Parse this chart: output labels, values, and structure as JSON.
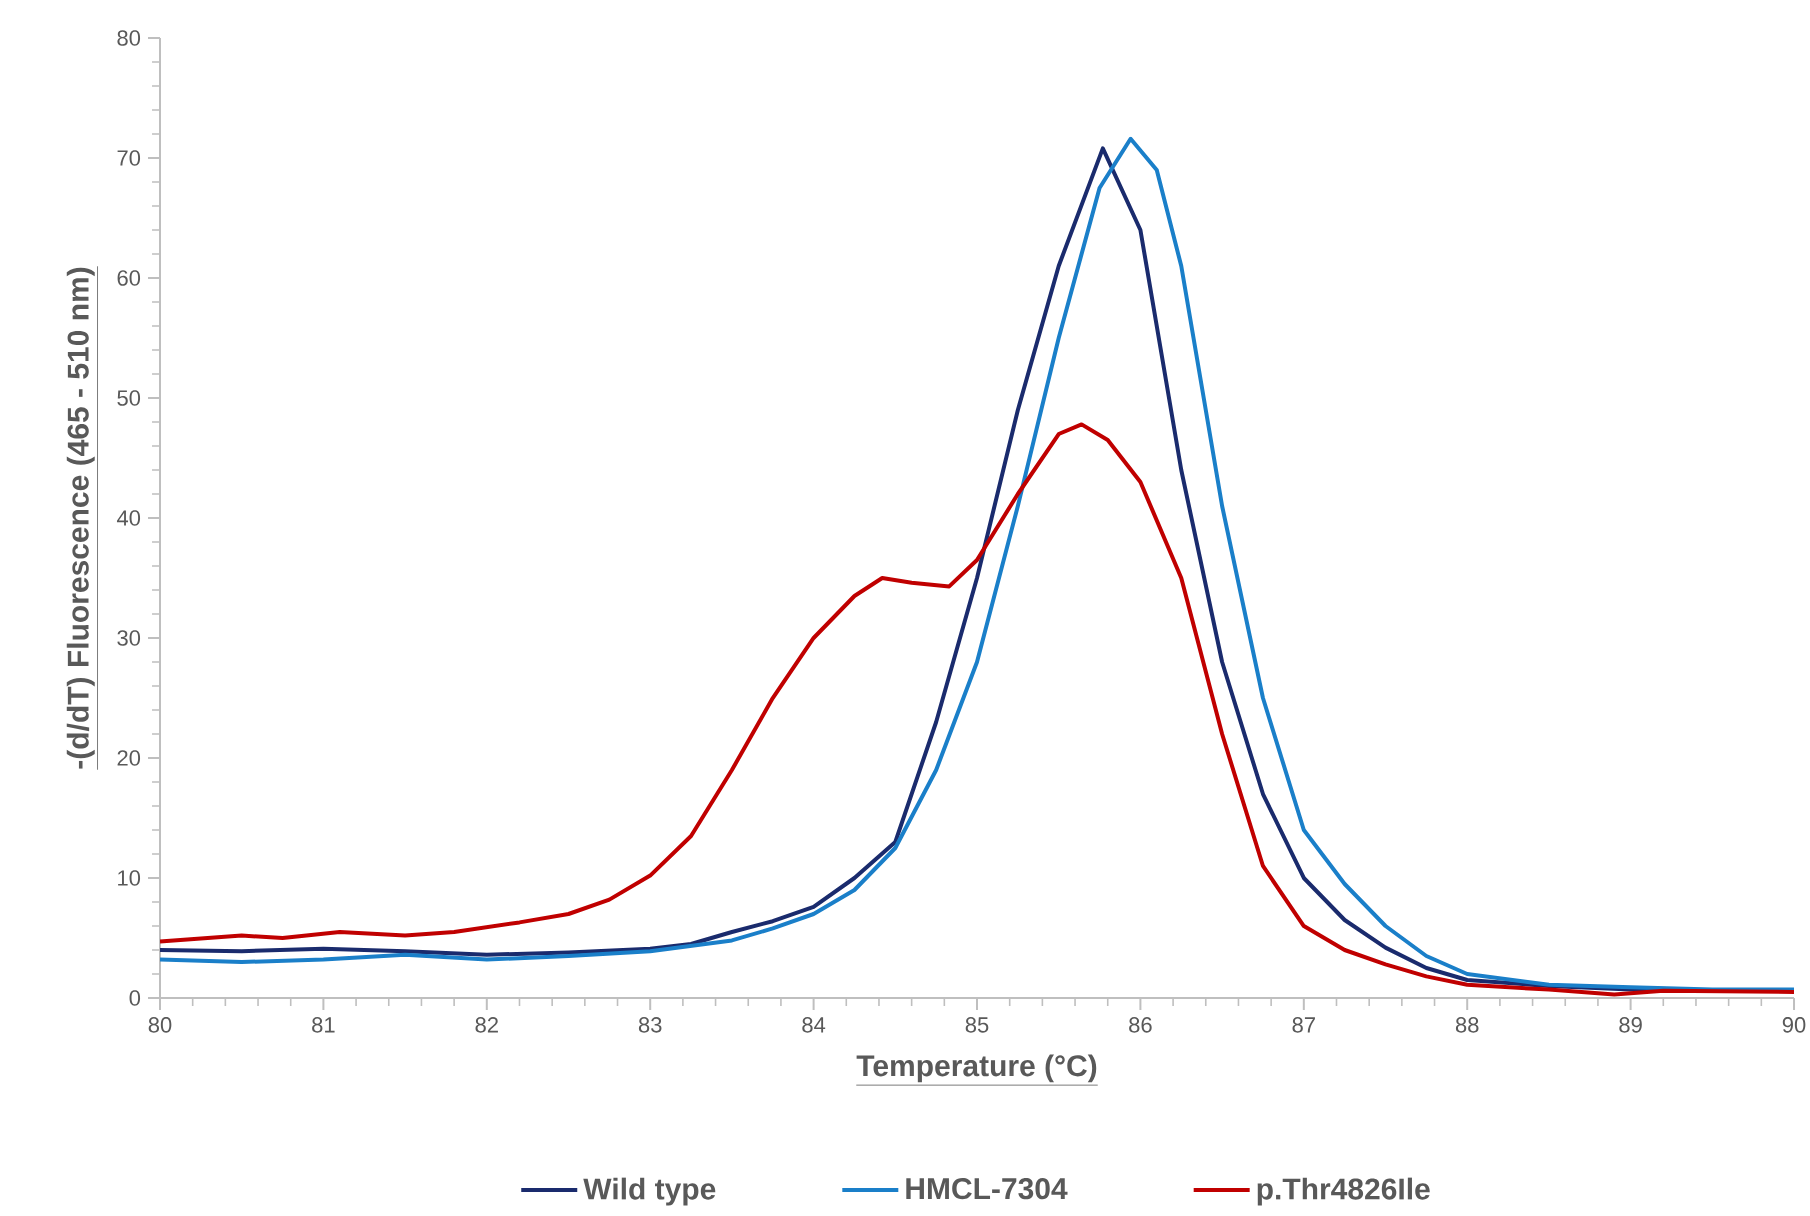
{
  "chart_data": {
    "type": "line",
    "xlabel": "Temperature (°C)",
    "ylabel": "-(d/dT) Fluorescence (465 - 510 nm)",
    "xlim": [
      80,
      90
    ],
    "ylim": [
      0,
      80
    ],
    "xticks": [
      80,
      81,
      82,
      83,
      84,
      85,
      86,
      87,
      88,
      89,
      90
    ],
    "yticks": [
      0,
      10,
      20,
      30,
      40,
      50,
      60,
      70,
      80
    ],
    "legend": "bottom",
    "line_style": "solid",
    "marker": "none",
    "series": [
      {
        "name": "Wild type",
        "color": "#1a2b6d",
        "x": [
          80,
          80.5,
          81,
          81.5,
          82,
          82.5,
          83,
          83.25,
          83.5,
          83.75,
          84,
          84.25,
          84.5,
          84.75,
          85,
          85.25,
          85.5,
          85.77,
          86,
          86.25,
          86.5,
          86.75,
          87,
          87.25,
          87.5,
          87.75,
          88,
          88.5,
          89,
          89.5,
          90
        ],
        "values": [
          4.0,
          3.9,
          4.1,
          3.9,
          3.6,
          3.8,
          4.1,
          4.5,
          5.5,
          6.4,
          7.6,
          10,
          13,
          23,
          35,
          49,
          61,
          70.8,
          64,
          44,
          28,
          17,
          10,
          6.5,
          4.2,
          2.5,
          1.5,
          1.0,
          0.7,
          0.6,
          0.6
        ]
      },
      {
        "name": "HMCL-7304",
        "color": "#1a7fc9",
        "x": [
          80,
          80.5,
          81,
          81.5,
          82,
          82.5,
          83,
          83.5,
          83.75,
          84,
          84.25,
          84.5,
          84.75,
          85,
          85.25,
          85.5,
          85.75,
          85.94,
          86.1,
          86.25,
          86.5,
          86.75,
          87,
          87.25,
          87.5,
          87.75,
          88,
          88.5,
          89,
          89.5,
          90
        ],
        "values": [
          3.2,
          3.0,
          3.2,
          3.6,
          3.2,
          3.5,
          3.9,
          4.8,
          5.8,
          7.0,
          9,
          12.5,
          19,
          28,
          41,
          55,
          67.5,
          71.6,
          69,
          61,
          41,
          25,
          14,
          9.5,
          6,
          3.5,
          2.0,
          1.1,
          0.9,
          0.7,
          0.7
        ]
      },
      {
        "name": "p.Thr4826Ile",
        "color": "#c00000",
        "x": [
          80,
          80.5,
          80.75,
          81.1,
          81.5,
          81.8,
          82.2,
          82.5,
          82.75,
          83,
          83.25,
          83.5,
          83.75,
          84,
          84.25,
          84.42,
          84.6,
          84.83,
          85,
          85.25,
          85.5,
          85.64,
          85.8,
          86,
          86.25,
          86.5,
          86.75,
          87,
          87.25,
          87.5,
          87.75,
          88,
          88.5,
          88.9,
          89.2,
          90
        ],
        "values": [
          4.7,
          5.2,
          5.0,
          5.5,
          5.2,
          5.5,
          6.3,
          7.0,
          8.2,
          10.2,
          13.5,
          19,
          25,
          30,
          33.5,
          35,
          34.6,
          34.3,
          36.5,
          42,
          47,
          47.8,
          46.5,
          43,
          35,
          22,
          11,
          6,
          4,
          2.8,
          1.8,
          1.1,
          0.7,
          0.3,
          0.6,
          0.5
        ]
      }
    ]
  }
}
